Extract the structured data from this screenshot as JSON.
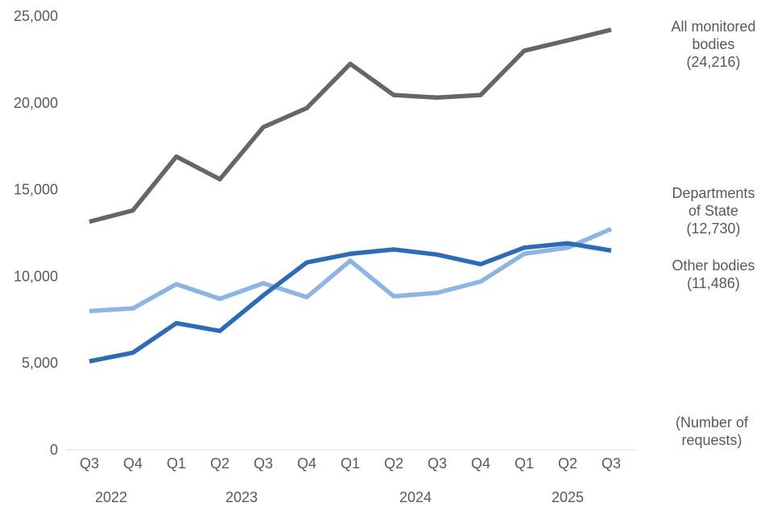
{
  "chart_data": {
    "type": "line",
    "categories": [
      "Q3",
      "Q4",
      "Q1",
      "Q2",
      "Q3",
      "Q4",
      "Q1",
      "Q2",
      "Q3",
      "Q4",
      "Q1",
      "Q2",
      "Q3"
    ],
    "year_labels": [
      "2022",
      "2023",
      "2024",
      "2025"
    ],
    "y_ticks": [
      "0",
      "5,000",
      "10,000",
      "15,000",
      "20,000",
      "25,000"
    ],
    "ylim": [
      0,
      25000
    ],
    "unit_label": [
      "(Number of",
      "requests)"
    ],
    "grid": false,
    "legend": "direct labels at right",
    "series": [
      {
        "name": "All monitored bodies",
        "label_lines": [
          "All monitored",
          "bodies",
          "(24,216)"
        ],
        "color": "#666666",
        "values": [
          13150,
          13800,
          16900,
          15600,
          18600,
          19700,
          22250,
          20450,
          20300,
          20450,
          23000,
          23600,
          24216
        ]
      },
      {
        "name": "Departments of State",
        "label_lines": [
          "Departments",
          "of State",
          "(12,730)"
        ],
        "color": "#8db4e2",
        "values": [
          8000,
          8150,
          9550,
          8700,
          9600,
          8800,
          10900,
          8850,
          9050,
          9700,
          11300,
          11650,
          12730
        ]
      },
      {
        "name": "Other bodies",
        "label_lines": [
          "Other bodies",
          "(11,486)"
        ],
        "color": "#2e6bb5",
        "values": [
          5100,
          5600,
          7300,
          6850,
          8900,
          10800,
          11300,
          11550,
          11250,
          10700,
          11650,
          11900,
          11486
        ]
      }
    ]
  }
}
